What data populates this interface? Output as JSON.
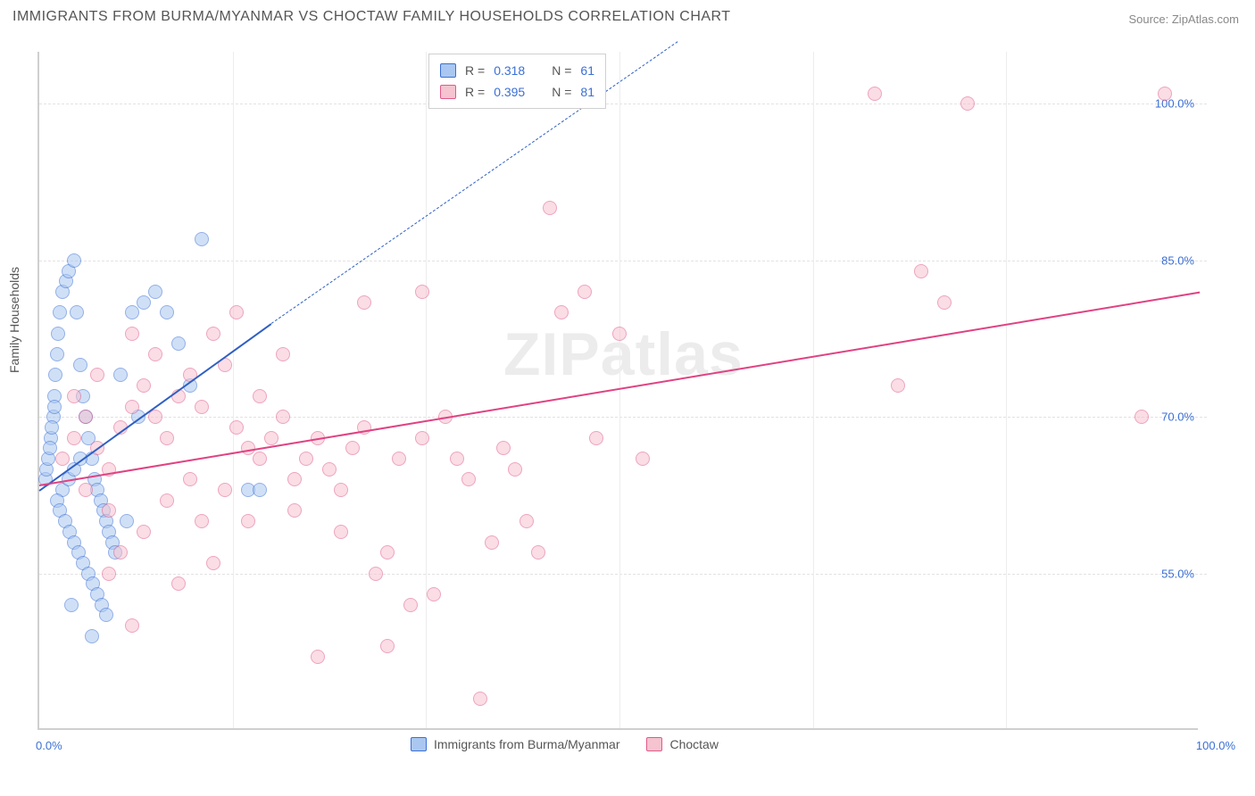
{
  "title": "IMMIGRANTS FROM BURMA/MYANMAR VS CHOCTAW FAMILY HOUSEHOLDS CORRELATION CHART",
  "source_label": "Source: ZipAtlas.com",
  "y_axis_label": "Family Households",
  "watermark_text": "ZIPatlas",
  "chart": {
    "type": "scatter",
    "xlim": [
      0,
      100
    ],
    "ylim": [
      40,
      105
    ],
    "x_ticks": [
      {
        "pos": 0,
        "label": "0.0%"
      },
      {
        "pos": 100,
        "label": "100.0%"
      }
    ],
    "y_gridlines": [
      55,
      70,
      85,
      100
    ],
    "y_tick_labels": [
      "55.0%",
      "70.0%",
      "85.0%",
      "100.0%"
    ],
    "x_gridlines_minor": [
      16.67,
      33.33,
      50,
      66.67,
      83.33
    ],
    "background_color": "#ffffff",
    "grid_color": "#e2e2e2",
    "axis_color": "#cfcfcf",
    "marker_size": 16
  },
  "series": [
    {
      "name": "Immigrants from Burma/Myanmar",
      "marker_fill": "#a9c7f0",
      "marker_stroke": "#3b6fd6",
      "r_value": "0.318",
      "n_value": "61",
      "trend": {
        "x1": 0,
        "y1": 63,
        "x2": 20,
        "y2": 79,
        "dash_to_x": 55,
        "dash_to_y": 106,
        "color": "#2f5fc4",
        "width": 2
      },
      "points": [
        [
          0.5,
          64
        ],
        [
          0.6,
          65
        ],
        [
          0.8,
          66
        ],
        [
          1.0,
          68
        ],
        [
          1.2,
          70
        ],
        [
          1.3,
          72
        ],
        [
          1.4,
          74
        ],
        [
          1.5,
          76
        ],
        [
          1.6,
          78
        ],
        [
          1.8,
          80
        ],
        [
          2.0,
          82
        ],
        [
          2.3,
          83
        ],
        [
          2.5,
          84
        ],
        [
          3.0,
          85
        ],
        [
          3.5,
          75
        ],
        [
          3.8,
          72
        ],
        [
          4.0,
          70
        ],
        [
          4.2,
          68
        ],
        [
          4.5,
          66
        ],
        [
          4.8,
          64
        ],
        [
          5.0,
          63
        ],
        [
          5.3,
          62
        ],
        [
          5.5,
          61
        ],
        [
          5.8,
          60
        ],
        [
          6.0,
          59
        ],
        [
          6.3,
          58
        ],
        [
          2.0,
          63
        ],
        [
          2.5,
          64
        ],
        [
          3.0,
          65
        ],
        [
          3.5,
          66
        ],
        [
          1.5,
          62
        ],
        [
          1.8,
          61
        ],
        [
          2.2,
          60
        ],
        [
          2.6,
          59
        ],
        [
          3.0,
          58
        ],
        [
          3.4,
          57
        ],
        [
          3.8,
          56
        ],
        [
          4.2,
          55
        ],
        [
          4.6,
          54
        ],
        [
          5.0,
          53
        ],
        [
          5.4,
          52
        ],
        [
          5.8,
          51
        ],
        [
          0.9,
          67
        ],
        [
          1.1,
          69
        ],
        [
          1.3,
          71
        ],
        [
          8.0,
          80
        ],
        [
          9.0,
          81
        ],
        [
          10.0,
          82
        ],
        [
          11.0,
          80
        ],
        [
          12.0,
          77
        ],
        [
          13.0,
          73
        ],
        [
          18.0,
          63
        ],
        [
          19.0,
          63
        ],
        [
          4.5,
          49
        ],
        [
          3.2,
          80
        ],
        [
          7.0,
          74
        ],
        [
          8.5,
          70
        ],
        [
          14.0,
          87
        ],
        [
          6.5,
          57
        ],
        [
          7.5,
          60
        ],
        [
          2.8,
          52
        ]
      ]
    },
    {
      "name": "Choctaw",
      "marker_fill": "#f6c3d0",
      "marker_stroke": "#e15a8a",
      "r_value": "0.395",
      "n_value": "81",
      "trend": {
        "x1": 0,
        "y1": 63.5,
        "x2": 100,
        "y2": 82,
        "color": "#e04282",
        "width": 2.5
      },
      "points": [
        [
          2,
          66
        ],
        [
          3,
          68
        ],
        [
          4,
          70
        ],
        [
          5,
          67
        ],
        [
          6,
          65
        ],
        [
          7,
          69
        ],
        [
          8,
          71
        ],
        [
          9,
          73
        ],
        [
          10,
          70
        ],
        [
          11,
          68
        ],
        [
          12,
          72
        ],
        [
          13,
          74
        ],
        [
          14,
          71
        ],
        [
          15,
          78
        ],
        [
          16,
          75
        ],
        [
          17,
          69
        ],
        [
          18,
          67
        ],
        [
          19,
          66
        ],
        [
          20,
          68
        ],
        [
          21,
          70
        ],
        [
          22,
          64
        ],
        [
          23,
          66
        ],
        [
          24,
          68
        ],
        [
          25,
          65
        ],
        [
          26,
          63
        ],
        [
          27,
          67
        ],
        [
          28,
          69
        ],
        [
          29,
          55
        ],
        [
          30,
          57
        ],
        [
          31,
          66
        ],
        [
          32,
          52
        ],
        [
          33,
          68
        ],
        [
          34,
          53
        ],
        [
          35,
          70
        ],
        [
          36,
          66
        ],
        [
          37,
          64
        ],
        [
          38,
          43
        ],
        [
          39,
          58
        ],
        [
          40,
          67
        ],
        [
          41,
          65
        ],
        [
          42,
          60
        ],
        [
          43,
          57
        ],
        [
          44,
          90
        ],
        [
          45,
          80
        ],
        [
          47,
          82
        ],
        [
          48,
          68
        ],
        [
          50,
          78
        ],
        [
          52,
          66
        ],
        [
          18,
          60
        ],
        [
          22,
          61
        ],
        [
          26,
          59
        ],
        [
          10,
          76
        ],
        [
          8,
          78
        ],
        [
          6,
          61
        ],
        [
          14,
          60
        ],
        [
          16,
          63
        ],
        [
          9,
          59
        ],
        [
          11,
          62
        ],
        [
          13,
          64
        ],
        [
          72,
          101
        ],
        [
          74,
          73
        ],
        [
          76,
          84
        ],
        [
          78,
          81
        ],
        [
          80,
          100
        ],
        [
          95,
          70
        ],
        [
          97,
          101
        ],
        [
          24,
          47
        ],
        [
          5,
          74
        ],
        [
          3,
          72
        ],
        [
          4,
          63
        ],
        [
          7,
          57
        ],
        [
          15,
          56
        ],
        [
          28,
          81
        ],
        [
          33,
          82
        ],
        [
          12,
          54
        ],
        [
          19,
          72
        ],
        [
          21,
          76
        ],
        [
          17,
          80
        ],
        [
          6,
          55
        ],
        [
          8,
          50
        ],
        [
          30,
          48
        ]
      ]
    }
  ],
  "correlation_legend": {
    "r_label": "R =",
    "n_label": "N ="
  },
  "bottom_legend": {
    "series1_label": "Immigrants from Burma/Myanmar",
    "series2_label": "Choctaw"
  }
}
